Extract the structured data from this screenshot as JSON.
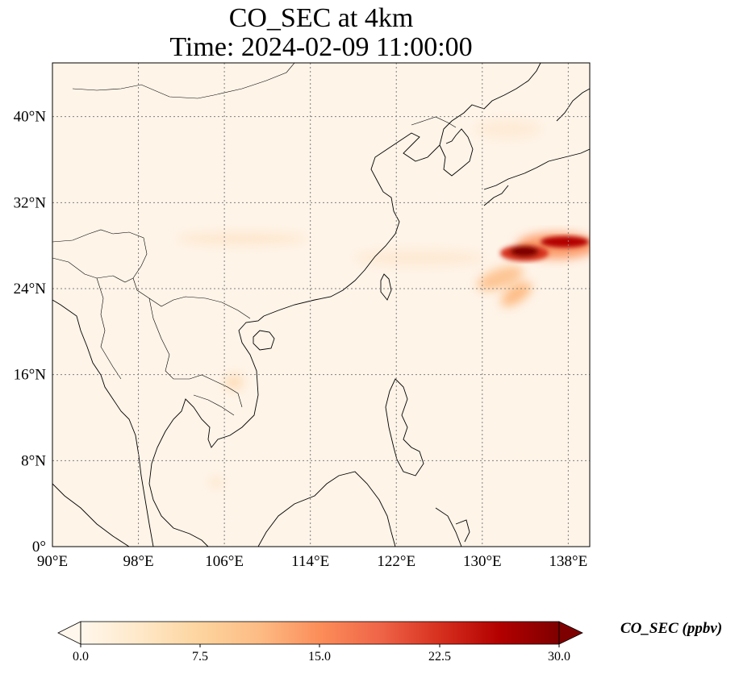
{
  "title": {
    "line1": "CO_SEC at 4km",
    "line2": "Time: 2024-02-09 11:00:00"
  },
  "map": {
    "lon_range": [
      90,
      140
    ],
    "lat_range": [
      0,
      45
    ],
    "lon_ticks": [
      {
        "value": 90,
        "label": "90°E"
      },
      {
        "value": 98,
        "label": "98°E"
      },
      {
        "value": 106,
        "label": "106°E"
      },
      {
        "value": 114,
        "label": "114°E"
      },
      {
        "value": 122,
        "label": "122°E"
      },
      {
        "value": 130,
        "label": "130°E"
      },
      {
        "value": 138,
        "label": "138°E"
      }
    ],
    "lat_ticks": [
      {
        "value": 0,
        "label": "0°"
      },
      {
        "value": 8,
        "label": "8°N"
      },
      {
        "value": 16,
        "label": "16°N"
      },
      {
        "value": 24,
        "label": "24°N"
      },
      {
        "value": 32,
        "label": "32°N"
      },
      {
        "value": 40,
        "label": "40°N"
      }
    ],
    "gridlines": "dotted",
    "background_color": "#fef4e8",
    "coastline_color": "#000000"
  },
  "colorbar": {
    "label": "CO_SEC (ppbv)",
    "colormap": "OrRd",
    "range": [
      0,
      30
    ],
    "extend": "both",
    "ticks": [
      "0.0",
      "7.5",
      "15.0",
      "22.5",
      "30.0"
    ],
    "colors": [
      "#fff7ec",
      "#fee8c8",
      "#fdd49e",
      "#fdbb84",
      "#fc8d59",
      "#ef6548",
      "#d7301f",
      "#b30000",
      "#7f0000"
    ]
  }
}
